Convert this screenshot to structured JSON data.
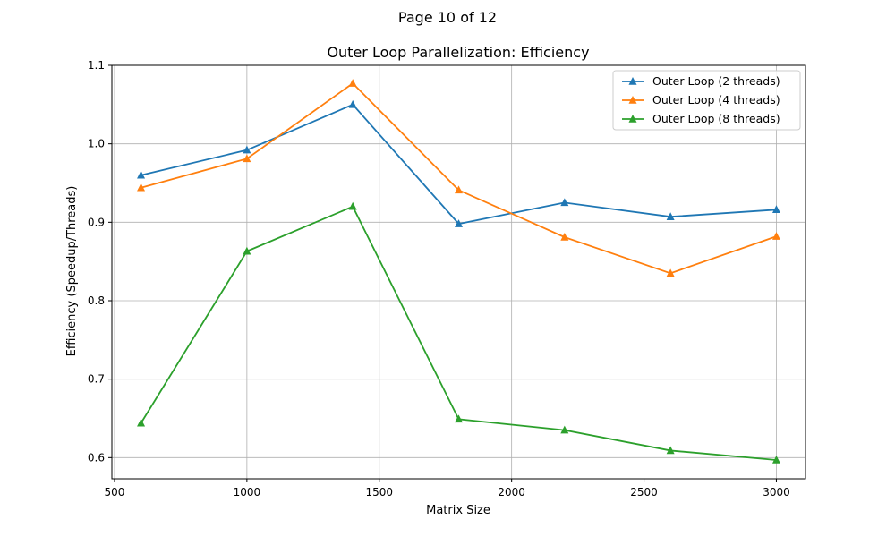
{
  "page_label": "Page 10 of 12",
  "chart_data": {
    "type": "line",
    "title": "Outer Loop Parallelization: Efficiency",
    "xlabel": "Matrix Size",
    "ylabel": "Efficiency (Speedup/Threads)",
    "x": [
      600,
      1000,
      1400,
      1800,
      2200,
      2600,
      3000
    ],
    "xlim": [
      490,
      3110
    ],
    "ylim": [
      0.573,
      1.1
    ],
    "xticks": [
      500,
      1000,
      1500,
      2000,
      2500,
      3000
    ],
    "yticks": [
      0.6,
      0.7,
      0.8,
      0.9,
      1.0,
      1.1
    ],
    "xtick_labels": [
      "500",
      "1000",
      "1500",
      "2000",
      "2500",
      "3000"
    ],
    "ytick_labels": [
      "0.6",
      "0.7",
      "0.8",
      "0.9",
      "1.0",
      "1.1"
    ],
    "grid": true,
    "legend_position": "top-right",
    "marker": "triangle",
    "series": [
      {
        "name": "Outer Loop (2 threads)",
        "color": "#1f77b4",
        "values": [
          0.96,
          0.992,
          1.05,
          0.898,
          0.925,
          0.907,
          0.916
        ]
      },
      {
        "name": "Outer Loop (4 threads)",
        "color": "#ff7f0e",
        "values": [
          0.944,
          0.981,
          1.077,
          0.941,
          0.881,
          0.835,
          0.882
        ]
      },
      {
        "name": "Outer Loop (8 threads)",
        "color": "#2ca02c",
        "values": [
          0.644,
          0.863,
          0.92,
          0.649,
          0.635,
          0.609,
          0.597
        ]
      }
    ]
  }
}
